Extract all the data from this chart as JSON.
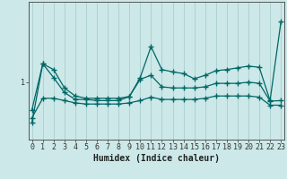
{
  "title": "",
  "xlabel": "Humidex (Indice chaleur)",
  "background_color": "#cce8e8",
  "line_color": "#006666",
  "grid_color": "#aacece",
  "lines": [
    [
      0.3,
      1.32,
      1.08,
      0.82,
      0.7,
      0.7,
      0.68,
      0.68,
      0.68,
      0.75,
      1.08,
      1.62,
      1.22,
      1.18,
      1.15,
      1.06,
      1.12,
      1.2,
      1.22,
      1.25,
      1.28,
      1.26,
      0.68,
      2.05
    ],
    [
      0.52,
      1.32,
      1.22,
      0.9,
      0.76,
      0.72,
      0.72,
      0.72,
      0.72,
      0.75,
      1.05,
      1.12,
      0.92,
      0.9,
      0.9,
      0.9,
      0.92,
      0.98,
      0.98,
      0.98,
      1.0,
      0.98,
      0.67,
      0.68
    ],
    [
      0.38,
      0.72,
      0.72,
      0.68,
      0.64,
      0.62,
      0.62,
      0.62,
      0.62,
      0.64,
      0.68,
      0.74,
      0.7,
      0.7,
      0.7,
      0.7,
      0.72,
      0.76,
      0.76,
      0.76,
      0.76,
      0.74,
      0.6,
      0.6
    ]
  ],
  "ylim": [
    0.0,
    2.4
  ],
  "yticks": [
    1.0
  ],
  "ytick_labels": [
    "1"
  ],
  "xlim": [
    -0.3,
    23.3
  ],
  "x_ticks": [
    0,
    1,
    2,
    3,
    4,
    5,
    6,
    7,
    8,
    9,
    10,
    11,
    12,
    13,
    14,
    15,
    16,
    17,
    18,
    19,
    20,
    21,
    22,
    23
  ],
  "title_fontsize": 7,
  "axis_fontsize": 7,
  "tick_fontsize": 6,
  "linewidth": 0.9,
  "markersize": 4.0
}
